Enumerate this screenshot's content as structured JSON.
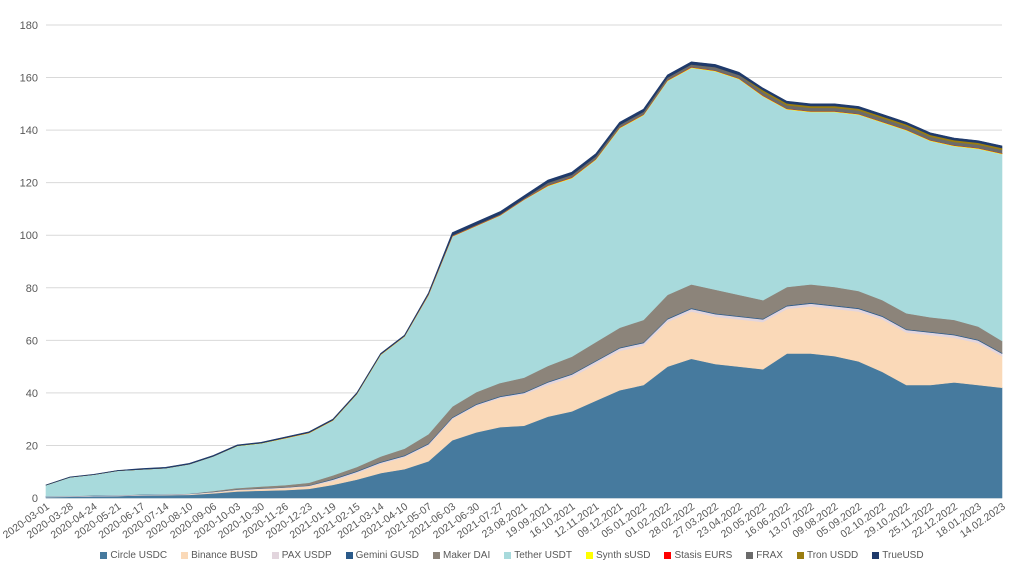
{
  "chart_data": {
    "type": "area",
    "stacked": true,
    "title": "",
    "xlabel": "",
    "ylabel": "",
    "ylim": [
      0,
      180
    ],
    "yticks": [
      0,
      20,
      40,
      60,
      80,
      100,
      120,
      140,
      160,
      180
    ],
    "grid": true,
    "legend_position": "bottom",
    "x": [
      "2020-03-01",
      "2020-03-28",
      "2020-04-24",
      "2020-05-21",
      "2020-06-17",
      "2020-07-14",
      "2020-08-10",
      "2020-09-06",
      "2020-10-03",
      "2020-10-30",
      "2020-11-26",
      "2020-12-23",
      "2021-01-19",
      "2021-02-15",
      "2021-03-14",
      "2021-04-10",
      "2021-05-07",
      "2021-06-03",
      "2021-06-30",
      "2021-07-27",
      "23.08.2021",
      "19.09.2021",
      "16.10.2021",
      "12.11.2021",
      "09.12.2021",
      "05.01.2022",
      "01.02.2022",
      "28.02.2022",
      "27.03.2022",
      "23.04.2022",
      "20.05.2022",
      "16.06.2022",
      "13.07.2022",
      "09.08.2022",
      "05.09.2022",
      "02.10.2022",
      "29.10.2022",
      "25.11.2022",
      "22.12.2022",
      "18.01.2023",
      "14.02.2023"
    ],
    "series": [
      {
        "name": "Circle USDC",
        "color": "#467a9e",
        "values": [
          0.4,
          0.5,
          0.7,
          0.8,
          1,
          1.1,
          1.2,
          1.8,
          2.5,
          2.8,
          3,
          3.5,
          5,
          7,
          9.5,
          11,
          14,
          22,
          25,
          27,
          27.5,
          31,
          33,
          37,
          41,
          43,
          50,
          53,
          51,
          50,
          49,
          55,
          55,
          54,
          52,
          48,
          43,
          43,
          44,
          43,
          42
        ]
      },
      {
        "name": "Binance BUSD",
        "color": "#fad9b8",
        "values": [
          0,
          0,
          0,
          0,
          0.1,
          0.1,
          0.2,
          0.3,
          0.5,
          0.6,
          0.8,
          1,
          1.5,
          2.5,
          3.5,
          4.5,
          6,
          8,
          10,
          11,
          12,
          12,
          13,
          14,
          15,
          15,
          17,
          18,
          18,
          18,
          18,
          17,
          18,
          18,
          19,
          20,
          20,
          19,
          17,
          16,
          12
        ]
      },
      {
        "name": "PAX USDP",
        "color": "#e2d5dd",
        "values": [
          0.2,
          0.2,
          0.2,
          0.2,
          0.2,
          0.2,
          0.2,
          0.2,
          0.2,
          0.2,
          0.2,
          0.2,
          0.5,
          0.5,
          0.5,
          0.5,
          0.5,
          0.5,
          0.5,
          0.5,
          0.5,
          1,
          1,
          1,
          1,
          1,
          1,
          1,
          1,
          1,
          1,
          1,
          1,
          1,
          1,
          1,
          1,
          1,
          1,
          1,
          1
        ]
      },
      {
        "name": "Gemini GUSD",
        "color": "#2a5a8a",
        "values": [
          0.1,
          0.1,
          0.1,
          0.1,
          0.1,
          0.1,
          0.1,
          0.1,
          0.1,
          0.1,
          0.1,
          0.1,
          0.3,
          0.3,
          0.3,
          0.3,
          0.3,
          0.3,
          0.3,
          0.3,
          0.3,
          0.3,
          0.3,
          0.3,
          0.3,
          0.3,
          0.3,
          0.3,
          0.3,
          0.3,
          0.3,
          0.3,
          0.3,
          0.3,
          0.3,
          0.3,
          0.3,
          0.3,
          0.3,
          0.3,
          0.3
        ]
      },
      {
        "name": "Maker DAI",
        "color": "#8c847a",
        "values": [
          0,
          0,
          0,
          0,
          0,
          0,
          0,
          0.3,
          0.5,
          0.7,
          0.8,
          1,
          1.3,
          1.5,
          2,
          2.5,
          3.5,
          4,
          4.5,
          5,
          5.5,
          6,
          6.5,
          7,
          7.5,
          8.5,
          9,
          9,
          9,
          8,
          7,
          7,
          7,
          7,
          6.5,
          6,
          6,
          5.5,
          5.5,
          5,
          4.5
        ]
      },
      {
        "name": "Tether USDT",
        "color": "#a8dadc",
        "values": [
          4.2,
          7.1,
          7.9,
          9.3,
          9.5,
          9.9,
          11.2,
          13.2,
          16,
          16.4,
          17.8,
          18.9,
          20.9,
          27.7,
          38.7,
          42.7,
          52.9,
          64.7,
          63.2,
          63.7,
          67.7,
          68.4,
          67.9,
          69.4,
          75.9,
          77.9,
          81.4,
          82.4,
          83.1,
          82.1,
          77.6,
          67.6,
          65.6,
          66.6,
          67.1,
          67.6,
          69.6,
          67.1,
          66.1,
          67.6,
          71.1
        ]
      },
      {
        "name": "Synth sUSD",
        "color": "#ffff00",
        "values": [
          0,
          0,
          0,
          0,
          0,
          0,
          0,
          0,
          0.1,
          0.1,
          0.1,
          0.1,
          0.1,
          0.1,
          0.1,
          0.1,
          0.1,
          0.1,
          0.1,
          0.1,
          0.1,
          0.2,
          0.2,
          0.2,
          0.2,
          0.2,
          0.2,
          0.2,
          0.2,
          0.2,
          0.2,
          0.2,
          0.2,
          0.2,
          0.2,
          0.2,
          0.2,
          0.2,
          0.2,
          0.2,
          0.2
        ]
      },
      {
        "name": "Stasis EURS",
        "color": "#ff0000",
        "values": [
          0,
          0,
          0,
          0,
          0,
          0,
          0,
          0,
          0,
          0,
          0.1,
          0.1,
          0.1,
          0.1,
          0.1,
          0.1,
          0.1,
          0.1,
          0.1,
          0.1,
          0.1,
          0.1,
          0.1,
          0.1,
          0.1,
          0.1,
          0.1,
          0.1,
          0.1,
          0.1,
          0.1,
          0.1,
          0.1,
          0.1,
          0.1,
          0.1,
          0.1,
          0.1,
          0.1,
          0.1,
          0.1
        ]
      },
      {
        "name": "FRAX",
        "color": "#6b6b6b",
        "values": [
          0,
          0,
          0,
          0,
          0,
          0,
          0,
          0,
          0,
          0,
          0,
          0,
          0,
          0,
          0,
          0,
          0.3,
          0.3,
          0.3,
          0.3,
          0.3,
          1,
          1,
          1,
          1,
          1,
          1,
          1,
          1.3,
          1.3,
          1.3,
          1.3,
          1.3,
          1.3,
          1.3,
          1.3,
          1.3,
          1.3,
          1.3,
          1.3,
          1.3
        ]
      },
      {
        "name": "Tron USDD",
        "color": "#9a7d10",
        "values": [
          0,
          0,
          0,
          0,
          0,
          0,
          0,
          0,
          0,
          0,
          0,
          0,
          0,
          0,
          0,
          0,
          0,
          0,
          0,
          0,
          0,
          0,
          0,
          0,
          0,
          0,
          0,
          0,
          0,
          0,
          0.7,
          0.7,
          0.7,
          0.7,
          0.7,
          0.7,
          0.7,
          0.7,
          0.7,
          0.7,
          0.7
        ]
      },
      {
        "name": "TrueUSD",
        "color": "#1f3a6b",
        "values": [
          0.1,
          0.1,
          0.1,
          0.1,
          0.3,
          0.3,
          0.3,
          0.3,
          0.3,
          0.3,
          0.3,
          0.3,
          0.3,
          0.3,
          0.3,
          0.3,
          0.3,
          1,
          1,
          1,
          1,
          1,
          1,
          1,
          1,
          1,
          1,
          1,
          1,
          1,
          0.8,
          0.8,
          0.8,
          0.8,
          0.8,
          0.8,
          0.8,
          0.8,
          0.8,
          0.8,
          0.8
        ]
      }
    ]
  }
}
